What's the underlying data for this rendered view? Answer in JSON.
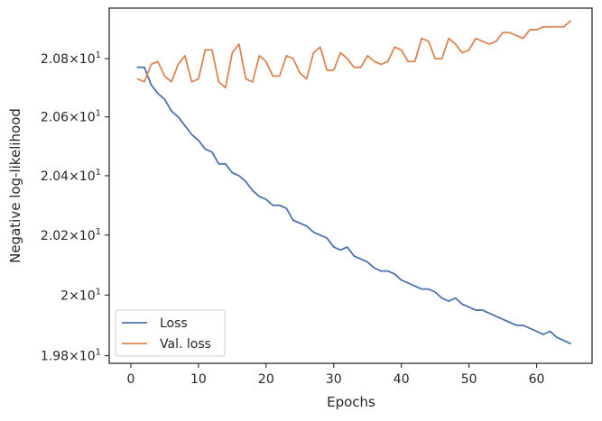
{
  "chart_data": {
    "type": "line",
    "xlabel": "Epochs",
    "ylabel": "Negative log-likelihood",
    "y_scale": "log",
    "xlim": [
      -3.2,
      68.2
    ],
    "ylim": [
      19.775,
      20.975
    ],
    "x_ticks": [
      0,
      10,
      20,
      30,
      40,
      50,
      60
    ],
    "x_tick_labels": [
      "0",
      "10",
      "20",
      "30",
      "40",
      "50",
      "60"
    ],
    "y_ticks": [
      19.8,
      20.0,
      20.2,
      20.4,
      20.6,
      20.8
    ],
    "y_tick_labels": [
      {
        "mantissa": "1.98",
        "exp": "1"
      },
      {
        "mantissa": "2",
        "exp": "1"
      },
      {
        "mantissa": "2.02",
        "exp": "1"
      },
      {
        "mantissa": "2.04",
        "exp": "1"
      },
      {
        "mantissa": "2.06",
        "exp": "1"
      },
      {
        "mantissa": "2.08",
        "exp": "1"
      }
    ],
    "grid": false,
    "legend_position": "lower-left",
    "x": [
      1,
      2,
      3,
      4,
      5,
      6,
      7,
      8,
      9,
      10,
      11,
      12,
      13,
      14,
      15,
      16,
      17,
      18,
      19,
      20,
      21,
      22,
      23,
      24,
      25,
      26,
      27,
      28,
      29,
      30,
      31,
      32,
      33,
      34,
      35,
      36,
      37,
      38,
      39,
      40,
      41,
      42,
      43,
      44,
      45,
      46,
      47,
      48,
      49,
      50,
      51,
      52,
      53,
      54,
      55,
      56,
      57,
      58,
      59,
      60,
      61,
      62,
      63,
      64,
      65
    ],
    "series": [
      {
        "name": "Loss",
        "color": "#4c72b0",
        "values": [
          20.77,
          20.77,
          20.71,
          20.68,
          20.66,
          20.62,
          20.6,
          20.57,
          20.54,
          20.52,
          20.49,
          20.48,
          20.44,
          20.44,
          20.41,
          20.4,
          20.38,
          20.35,
          20.33,
          20.32,
          20.3,
          20.3,
          20.29,
          20.25,
          20.24,
          20.23,
          20.21,
          20.2,
          20.19,
          20.16,
          20.15,
          20.16,
          20.13,
          20.12,
          20.11,
          20.09,
          20.08,
          20.08,
          20.07,
          20.05,
          20.04,
          20.03,
          20.02,
          20.02,
          20.01,
          19.99,
          19.98,
          19.99,
          19.97,
          19.96,
          19.95,
          19.95,
          19.94,
          19.93,
          19.92,
          19.91,
          19.9,
          19.9,
          19.89,
          19.88,
          19.87,
          19.88,
          19.86,
          19.85,
          19.84
        ]
      },
      {
        "name": "Val. loss",
        "color": "#dd8452",
        "values": [
          20.73,
          20.72,
          20.78,
          20.79,
          20.74,
          20.72,
          20.78,
          20.81,
          20.72,
          20.73,
          20.83,
          20.83,
          20.72,
          20.7,
          20.82,
          20.85,
          20.73,
          20.72,
          20.81,
          20.79,
          20.74,
          20.74,
          20.81,
          20.8,
          20.75,
          20.73,
          20.82,
          20.84,
          20.76,
          20.76,
          20.82,
          20.8,
          20.77,
          20.77,
          20.81,
          20.79,
          20.78,
          20.79,
          20.84,
          20.83,
          20.79,
          20.79,
          20.87,
          20.86,
          20.8,
          20.8,
          20.87,
          20.85,
          20.82,
          20.83,
          20.87,
          20.86,
          20.85,
          20.86,
          20.89,
          20.89,
          20.88,
          20.87,
          20.9,
          20.9,
          20.91,
          20.91,
          20.91,
          20.91,
          20.93
        ]
      }
    ]
  }
}
